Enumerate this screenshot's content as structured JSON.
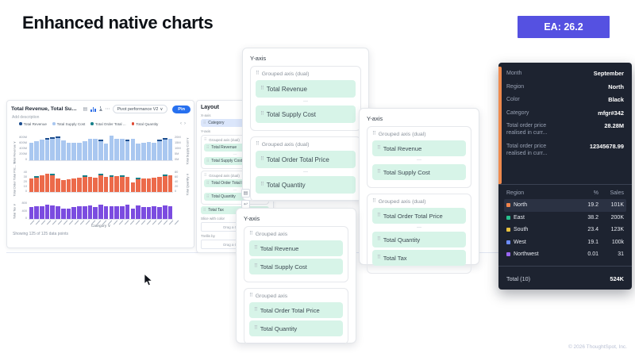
{
  "slide": {
    "title": "Enhanced native charts",
    "badge": "EA: 26.2",
    "footer": "© 2026 ThoughtSpot, Inc."
  },
  "icons": {
    "chevron_down": "∨",
    "ellipsis": "⋯",
    "prev": "‹",
    "next": "›",
    "drag_handle": "⠿",
    "dash": "—",
    "grid_glyph": "▤",
    "undo_glyph": "↩"
  },
  "answer_card": {
    "title": "Total Revenue, Total Supply Cost, T...",
    "description": "Add description",
    "view_selector": "Pivot performance V2",
    "pin_label": "Pin",
    "legend": [
      {
        "label": "Total Revenue",
        "color": "#1d4e8f"
      },
      {
        "label": "Total Supply Cost",
        "color": "#a9c7f0"
      },
      {
        "label": "Total Order Total ...",
        "color": "#17808a"
      },
      {
        "label": "Total Quantity",
        "color": "#e04a33"
      }
    ],
    "xaxis_label": "Category",
    "showing_text": "Showing 125 of 125 data points"
  },
  "chart_data": {
    "type": "bar",
    "title": "Total Revenue, Total Supply Cost, Total Order Total Price, Total Quantity, Total Tax by Category",
    "xlabel": "Category",
    "grid": false,
    "legend_position": "top",
    "panels": [
      {
        "left_axis": "Total Revenue",
        "left_ticks": [
          "800M",
          "600M",
          "400M",
          "200M",
          "0"
        ],
        "right_axis": "Total Supply Cost",
        "right_ticks": [
          "20M",
          "15M",
          "10M",
          "5M",
          "0M"
        ],
        "ylim": [
          0,
          800
        ],
        "ymax": 800,
        "color": "#a9c7f0",
        "cap_color": "#1d4e8f",
        "values": [
          545,
          585,
          620,
          680,
          700,
          725,
          605,
          525,
          545,
          535,
          590,
          645,
          665,
          625,
          505,
          745,
          645,
          665,
          625,
          645,
          505,
          545,
          565,
          545,
          625,
          685,
          665
        ],
        "caps": [
          3,
          4,
          5,
          13,
          18,
          24,
          25
        ]
      },
      {
        "left_axis": "Total Order Total Pric...",
        "left_ticks": [
          "40",
          "30",
          "20",
          "10",
          "0"
        ],
        "right_axis": "Total Quantity",
        "right_ticks": [
          "80",
          "60",
          "40",
          "20",
          "0"
        ],
        "ylim": [
          0,
          45
        ],
        "ymax": 45,
        "color": "#ec6a4a",
        "cap_color": "#17808a",
        "values": [
          27,
          31,
          32,
          35,
          36,
          27,
          24,
          25,
          26,
          28,
          32,
          30,
          28,
          36,
          30,
          32,
          31,
          32,
          30,
          18,
          28,
          26,
          27,
          28,
          30,
          34,
          32
        ],
        "caps": [
          1,
          4,
          10,
          13,
          15,
          17,
          20,
          25
        ]
      },
      {
        "left_axis": "Total Tax",
        "left_ticks": [
          "800",
          "400",
          "0"
        ],
        "right_axis": "",
        "right_ticks": [],
        "ylim": [
          0,
          900
        ],
        "ymax": 900,
        "color": "#7b4ce0",
        "cap_color": "#7b4ce0",
        "values": [
          570,
          590,
          610,
          660,
          640,
          610,
          490,
          470,
          570,
          590,
          610,
          620,
          570,
          660,
          590,
          610,
          610,
          590,
          660,
          490,
          630,
          570,
          570,
          590,
          570,
          620,
          610
        ],
        "caps": []
      }
    ]
  },
  "layout_panel": {
    "title": "Layout",
    "x_axis_label": "X-axis",
    "x_chip": "Category",
    "y_axis_label": "Y-axis",
    "groups": [
      {
        "label": "Grouped axis (dual)",
        "dual": true,
        "chips": [
          "Total Revenue",
          "Total Supply Cost"
        ]
      },
      {
        "label": "Grouped axis (dual)",
        "dual": true,
        "chips": [
          "Total Order Total Price",
          "Total Quantity"
        ]
      }
    ],
    "loose_chip": "Total Tax",
    "slice_label": "Slice with color",
    "slice_placeholder": "Drag a Column",
    "trellis_label": "Trellis by",
    "trellis_placeholder": "Drag a Column"
  },
  "cards": [
    {
      "header": "Y-axis",
      "groups": [
        {
          "label": "Grouped axis (dual)",
          "dual": true,
          "chips": [
            "Total Revenue",
            "Total Supply Cost"
          ]
        },
        {
          "label": "Grouped axis (dual)",
          "dual": true,
          "chips": [
            "Total Order Total Price",
            "Total Quantity"
          ]
        }
      ]
    },
    {
      "header": "Y-axis",
      "groups": [
        {
          "label": "Grouped axis (dual)",
          "dual": true,
          "chips": [
            "Total Revenue",
            "Total Supply Cost"
          ]
        },
        {
          "label": "Grouped axis (dual)",
          "dual": true,
          "chips": [
            "Total Order Total Price",
            "Total Quantity",
            "Total Tax"
          ]
        }
      ]
    },
    {
      "header": "Y-axis",
      "groups": [
        {
          "label": "Grouped axis",
          "dual": false,
          "chips": [
            "Total Revenue",
            "Total Supply Cost"
          ]
        },
        {
          "label": "Grouped axis",
          "dual": false,
          "chips": [
            "Total Order Total Price",
            "Total Quantity"
          ]
        }
      ]
    }
  ],
  "tooltip": {
    "accent_color": "#ef8a4e",
    "rows": [
      {
        "label": "Month",
        "value": "September"
      },
      {
        "label": "Region",
        "value": "North"
      },
      {
        "label": "Color",
        "value": "Black"
      },
      {
        "label": "Category",
        "value": "mfgr#342"
      },
      {
        "label": "Total order price realised in curr...",
        "value": "28.28M"
      },
      {
        "label": "Total order price realised in curr...",
        "value": "12345678.99"
      }
    ],
    "table": {
      "headers": [
        "Region",
        "%",
        "Sales"
      ],
      "rows": [
        {
          "region": "North",
          "color": "#f0854c",
          "pct": "19.2",
          "sales": "101K",
          "highlight": true
        },
        {
          "region": "East",
          "color": "#27c08d",
          "pct": "38.2",
          "sales": "200K",
          "highlight": false
        },
        {
          "region": "South",
          "color": "#e7c13f",
          "pct": "23.4",
          "sales": "123K",
          "highlight": false
        },
        {
          "region": "West",
          "color": "#6c8cff",
          "pct": "19.1",
          "sales": "100k",
          "highlight": false
        },
        {
          "region": "Northwest",
          "color": "#9a66f2",
          "pct": "0.01",
          "sales": "31",
          "highlight": false
        }
      ],
      "total_label": "Total (10)",
      "total_value": "524K"
    }
  }
}
